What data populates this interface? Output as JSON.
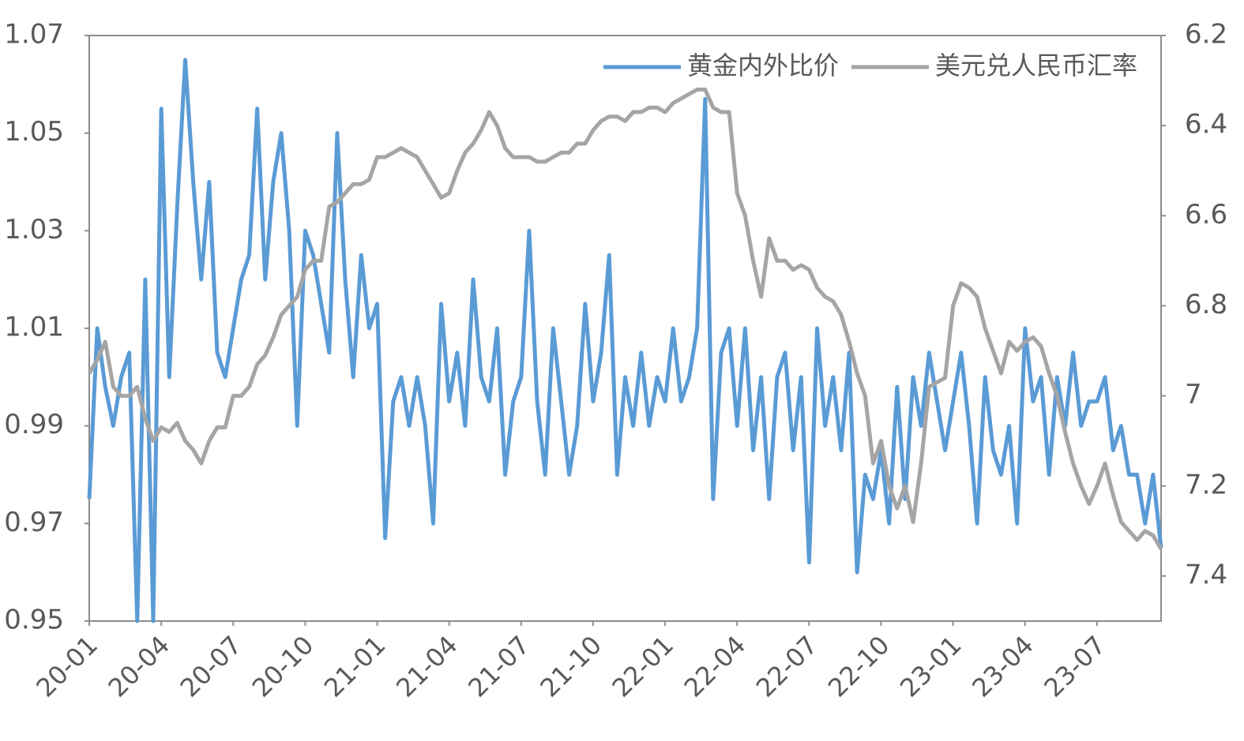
{
  "chart_data": {
    "type": "line",
    "categories": [
      "20-01",
      null,
      null,
      null,
      null,
      null,
      null,
      null,
      null,
      "20-04",
      null,
      null,
      null,
      null,
      null,
      null,
      null,
      null,
      "20-07",
      null,
      null,
      null,
      null,
      null,
      null,
      null,
      null,
      "20-10",
      null,
      null,
      null,
      null,
      null,
      null,
      null,
      null,
      "21-01",
      null,
      null,
      null,
      null,
      null,
      null,
      null,
      null,
      "21-04",
      null,
      null,
      null,
      null,
      null,
      null,
      null,
      null,
      "21-07",
      null,
      null,
      null,
      null,
      null,
      null,
      null,
      null,
      "21-10",
      null,
      null,
      null,
      null,
      null,
      null,
      null,
      null,
      "22-01",
      null,
      null,
      null,
      null,
      null,
      null,
      null,
      null,
      "22-04",
      null,
      null,
      null,
      null,
      null,
      null,
      null,
      null,
      "22-07",
      null,
      null,
      null,
      null,
      null,
      null,
      null,
      null,
      "22-10",
      null,
      null,
      null,
      null,
      null,
      null,
      null,
      null,
      "23-01",
      null,
      null,
      null,
      null,
      null,
      null,
      null,
      null,
      "23-04",
      null,
      null,
      null,
      null,
      null,
      null,
      null,
      null,
      "23-07",
      null,
      null,
      null,
      null,
      null,
      null,
      null,
      null
    ],
    "series": [
      {
        "name": "黄金内外比价",
        "color": "#5b9bd5",
        "axis": "y",
        "values": [
          0.975,
          1.01,
          0.998,
          0.99,
          1.0,
          1.005,
          0.95,
          1.02,
          0.95,
          1.055,
          1.0,
          1.035,
          1.065,
          1.04,
          1.02,
          1.04,
          1.005,
          1.0,
          1.01,
          1.02,
          1.025,
          1.055,
          1.02,
          1.04,
          1.05,
          1.03,
          0.99,
          1.03,
          1.025,
          1.015,
          1.005,
          1.05,
          1.02,
          1.0,
          1.025,
          1.01,
          1.015,
          0.967,
          0.995,
          1.0,
          0.99,
          1.0,
          0.99,
          0.97,
          1.015,
          0.995,
          1.005,
          0.99,
          1.02,
          1.0,
          0.995,
          1.01,
          0.98,
          0.995,
          1.0,
          1.03,
          0.995,
          0.98,
          1.01,
          0.995,
          0.98,
          0.99,
          1.015,
          0.995,
          1.005,
          1.025,
          0.98,
          1.0,
          0.99,
          1.005,
          0.99,
          1.0,
          0.995,
          1.01,
          0.995,
          1.0,
          1.01,
          1.057,
          0.975,
          1.005,
          1.01,
          0.99,
          1.01,
          0.985,
          1.0,
          0.975,
          1.0,
          1.005,
          0.985,
          1.0,
          0.962,
          1.01,
          0.99,
          1.0,
          0.985,
          1.005,
          0.96,
          0.98,
          0.975,
          0.985,
          0.97,
          0.998,
          0.975,
          1.0,
          0.99,
          1.005,
          0.995,
          0.985,
          0.995,
          1.005,
          0.99,
          0.97,
          1.0,
          0.985,
          0.98,
          0.99,
          0.97,
          1.01,
          0.995,
          1.0,
          0.98,
          1.0,
          0.99,
          1.005,
          0.99,
          0.995,
          0.995,
          1.0,
          0.985,
          0.99,
          0.98,
          0.98,
          0.97,
          0.98,
          0.965
        ]
      },
      {
        "name": "美元兑人民币汇率",
        "color": "#a5a5a5",
        "axis": "y2",
        "values": [
          6.95,
          6.92,
          6.88,
          6.98,
          7.0,
          7.0,
          6.98,
          7.05,
          7.1,
          7.07,
          7.08,
          7.06,
          7.1,
          7.12,
          7.15,
          7.1,
          7.07,
          7.07,
          7.0,
          7.0,
          6.98,
          6.93,
          6.91,
          6.87,
          6.82,
          6.8,
          6.78,
          6.72,
          6.7,
          6.7,
          6.58,
          6.57,
          6.55,
          6.53,
          6.53,
          6.52,
          6.47,
          6.47,
          6.46,
          6.45,
          6.46,
          6.47,
          6.5,
          6.53,
          6.56,
          6.55,
          6.5,
          6.46,
          6.44,
          6.41,
          6.37,
          6.4,
          6.45,
          6.47,
          6.47,
          6.47,
          6.48,
          6.48,
          6.47,
          6.46,
          6.46,
          6.44,
          6.44,
          6.41,
          6.39,
          6.38,
          6.38,
          6.39,
          6.37,
          6.37,
          6.36,
          6.36,
          6.37,
          6.35,
          6.34,
          6.33,
          6.32,
          6.32,
          6.36,
          6.37,
          6.37,
          6.55,
          6.6,
          6.7,
          6.78,
          6.65,
          6.7,
          6.7,
          6.72,
          6.71,
          6.72,
          6.76,
          6.78,
          6.79,
          6.82,
          6.88,
          6.95,
          7.0,
          7.15,
          7.1,
          7.2,
          7.25,
          7.2,
          7.28,
          7.15,
          6.98,
          6.97,
          6.96,
          6.8,
          6.75,
          6.76,
          6.78,
          6.85,
          6.9,
          6.95,
          6.88,
          6.9,
          6.88,
          6.87,
          6.89,
          6.95,
          7.0,
          7.08,
          7.15,
          7.2,
          7.24,
          7.2,
          7.15,
          7.22,
          7.28,
          7.3,
          7.32,
          7.3,
          7.31,
          7.34
        ]
      }
    ],
    "ylim": [
      0.95,
      1.07
    ],
    "yticks": [
      0.95,
      0.97,
      0.99,
      1.01,
      1.03,
      1.05,
      1.07
    ],
    "y2lim": [
      7.5,
      6.2
    ],
    "y2ticks": [
      6.2,
      6.4,
      6.6,
      6.8,
      7,
      7.2,
      7.4
    ],
    "legend": "upper right",
    "grid": false
  }
}
